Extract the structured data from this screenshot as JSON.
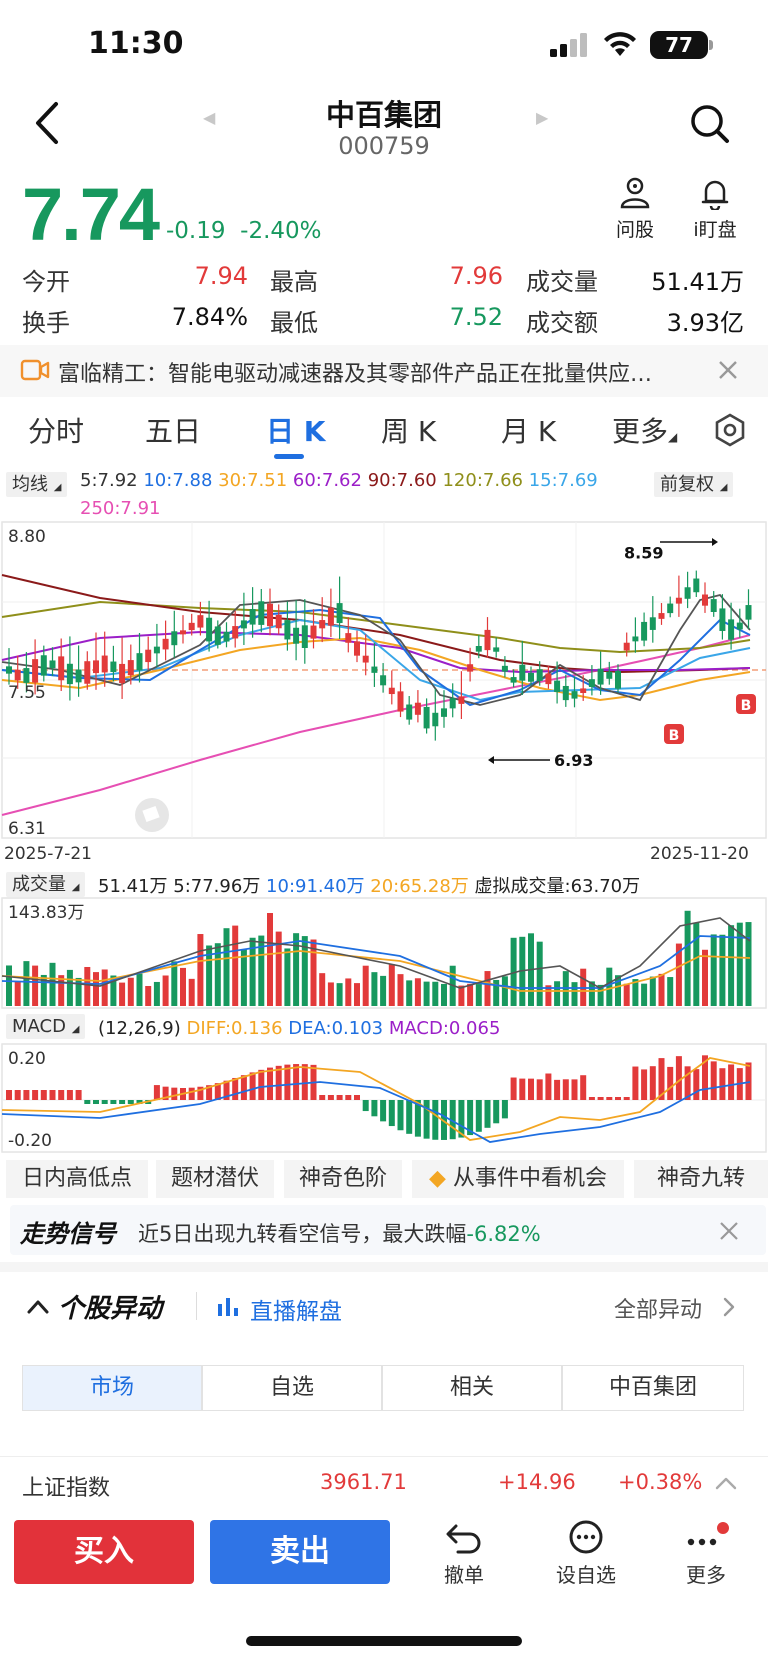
{
  "status_bar": {
    "time": "11:30",
    "battery": "77"
  },
  "header": {
    "name": "中百集团",
    "code": "000759"
  },
  "quote": {
    "price": "7.74",
    "change": "-0.19",
    "change_pct": "-2.40%",
    "ask_label": "问股",
    "watch_label": "i盯盘",
    "rows": [
      [
        {
          "label": "今开",
          "value": "7.94",
          "color": "red"
        },
        {
          "label": "最高",
          "value": "7.96",
          "color": "red"
        },
        {
          "label": "成交量",
          "value": "51.41万",
          "color": "blk"
        }
      ],
      [
        {
          "label": "换手",
          "value": "7.84%",
          "color": "blk"
        },
        {
          "label": "最低",
          "value": "7.52",
          "color": "green"
        },
        {
          "label": "成交额",
          "value": "3.93亿",
          "color": "blk"
        }
      ]
    ]
  },
  "news": {
    "text": "富临精工：智能电驱动减速器及其零部件产品正在批量供应…"
  },
  "chart_tabs": [
    "分时",
    "五日",
    "日 K",
    "周 K",
    "月 K",
    "更多"
  ],
  "ma": {
    "selector": "均线",
    "adjust": "前复权",
    "items": [
      {
        "text": "5:7.92",
        "color": "#333333"
      },
      {
        "text": "10:7.88",
        "color": "#1f6fe0"
      },
      {
        "text": "30:7.51",
        "color": "#f3a623"
      },
      {
        "text": "60:7.62",
        "color": "#9b1fc8"
      },
      {
        "text": "90:7.60",
        "color": "#8b1a1a"
      },
      {
        "text": "120:7.66",
        "color": "#8f8f1a"
      },
      {
        "text": "15:7.69",
        "color": "#3aa6e8"
      }
    ],
    "item_250": {
      "text": "250:7.91",
      "color": "#e64fb3"
    }
  },
  "kline": {
    "y_high": "8.80",
    "y_mid": "7.55",
    "y_low": "6.31",
    "max_label": "8.59",
    "min_label": "6.93",
    "date_start": "2025-7-21",
    "date_end": "2025-11-20",
    "marker": "B"
  },
  "volume": {
    "selector": "成交量",
    "items": [
      {
        "text": "51.41万",
        "color": "#222222"
      },
      {
        "text": "5:77.96万",
        "color": "#222222"
      },
      {
        "text": "10:91.40万",
        "color": "#1f6fe0"
      },
      {
        "text": "20:65.28万",
        "color": "#f3a623"
      },
      {
        "text": "虚拟成交量:63.70万",
        "color": "#222222"
      }
    ],
    "max": "143.83万"
  },
  "macd": {
    "selector": "MACD",
    "params": "(12,26,9)",
    "diff": "DIFF:0.136",
    "dea": "DEA:0.103",
    "macd": "MACD:0.065",
    "y_high": "0.20",
    "y_low": "-0.20"
  },
  "features": [
    "日内高低点",
    "题材潜伏",
    "神奇色阶",
    "从事件中看机会",
    "神奇九转"
  ],
  "signal": {
    "title": "走势信号",
    "text": "近5日出现九转看空信号，最大跌幅",
    "value": "-6.82%"
  },
  "anomaly": {
    "title": "个股异动",
    "live": "直播解盘",
    "all": "全部异动"
  },
  "segments": [
    "市场",
    "自选",
    "相关",
    "中百集团"
  ],
  "index": {
    "name": "上证指数",
    "value": "3961.71",
    "change": "+14.96",
    "pct": "+0.38%"
  },
  "bottom": {
    "buy": "买入",
    "sell": "卖出",
    "cancel": "撤单",
    "fav": "设自选",
    "more": "更多"
  },
  "colors": {
    "up": "#e23a3a",
    "down": "#17985e",
    "accent": "#1f6fe0"
  }
}
